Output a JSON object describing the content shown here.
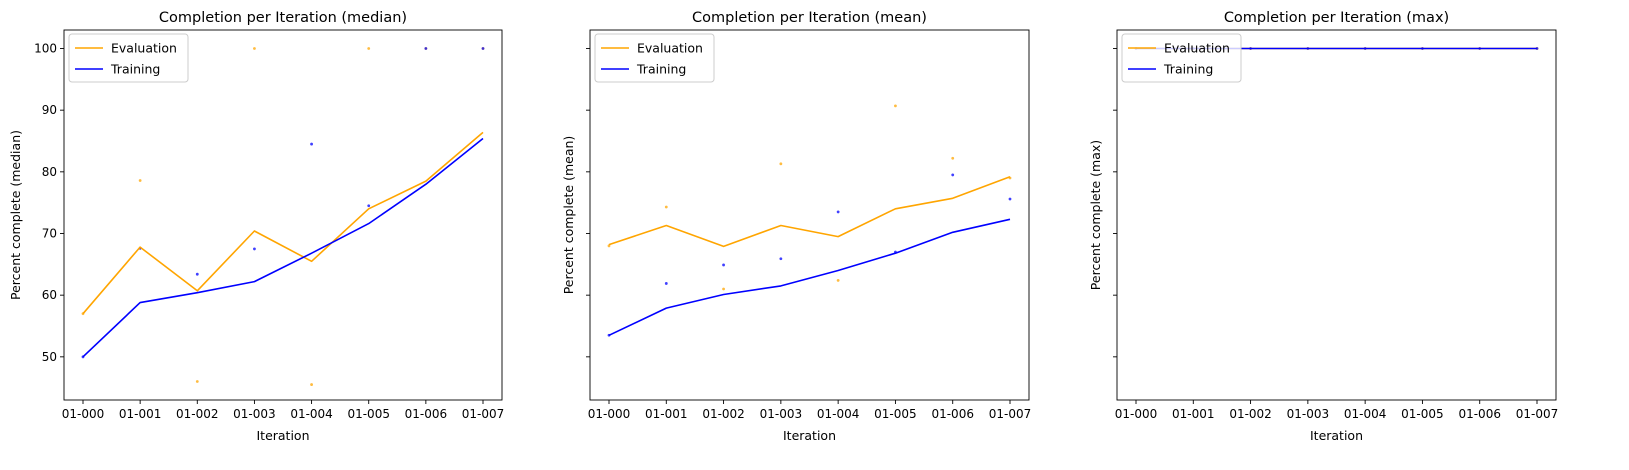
{
  "chart_data": [
    {
      "type": "line",
      "title": "Completion per Iteration (median)",
      "xlabel": "Iteration",
      "ylabel": "Percent complete (median)",
      "ylim": [
        43,
        103
      ],
      "yticks": [
        50,
        60,
        70,
        80,
        90,
        100
      ],
      "show_ytick_labels": true,
      "grid": false,
      "legend": "top-left",
      "categories": [
        "01-000",
        "01-001",
        "01-002",
        "01-003",
        "01-004",
        "01-005",
        "01-006",
        "01-007"
      ],
      "series": [
        {
          "name": "Evaluation",
          "color": "#ffa500",
          "values": [
            57.0,
            67.8,
            60.7,
            70.4,
            65.5,
            74.0,
            78.5,
            86.4
          ]
        },
        {
          "name": "Training",
          "color": "#0000ff",
          "values": [
            50.0,
            58.8,
            60.4,
            62.2,
            66.8,
            71.6,
            78.0,
            85.4
          ]
        }
      ],
      "scatter": [
        {
          "color": "#ffa500",
          "points": [
            [
              0,
              57.0
            ],
            [
              1,
              78.6
            ],
            [
              2,
              46.0
            ],
            [
              3,
              100.0
            ],
            [
              4,
              45.5
            ],
            [
              5,
              100.0
            ],
            [
              6,
              100.0
            ],
            [
              7,
              100.0
            ]
          ]
        },
        {
          "color": "#0000ff",
          "points": [
            [
              0,
              50.0
            ],
            [
              1,
              67.6
            ],
            [
              2,
              63.4
            ],
            [
              3,
              67.5
            ],
            [
              4,
              84.5
            ],
            [
              5,
              74.5
            ],
            [
              6,
              100.0
            ],
            [
              7,
              100.0
            ]
          ]
        }
      ]
    },
    {
      "type": "line",
      "title": "Completion per Iteration (mean)",
      "xlabel": "Iteration",
      "ylabel": "Percent complete (mean)",
      "ylim": [
        43,
        103
      ],
      "yticks": [
        50,
        60,
        70,
        80,
        90,
        100
      ],
      "show_ytick_labels": false,
      "grid": false,
      "legend": "top-left",
      "categories": [
        "01-000",
        "01-001",
        "01-002",
        "01-003",
        "01-004",
        "01-005",
        "01-006",
        "01-007"
      ],
      "series": [
        {
          "name": "Evaluation",
          "color": "#ffa500",
          "values": [
            68.2,
            71.3,
            67.9,
            71.3,
            69.5,
            74.0,
            75.7,
            79.2
          ]
        },
        {
          "name": "Training",
          "color": "#0000ff",
          "values": [
            53.5,
            57.9,
            60.1,
            61.5,
            64.0,
            66.8,
            70.2,
            72.3
          ]
        }
      ],
      "scatter": [
        {
          "color": "#ffa500",
          "points": [
            [
              0,
              68.0
            ],
            [
              1,
              74.3
            ],
            [
              2,
              61.0
            ],
            [
              3,
              81.3
            ],
            [
              4,
              62.4
            ],
            [
              5,
              90.7
            ],
            [
              6,
              82.2
            ],
            [
              7,
              79.0
            ]
          ]
        },
        {
          "color": "#0000ff",
          "points": [
            [
              0,
              53.5
            ],
            [
              1,
              61.9
            ],
            [
              2,
              64.9
            ],
            [
              3,
              65.9
            ],
            [
              4,
              73.5
            ],
            [
              5,
              67.0
            ],
            [
              6,
              79.5
            ],
            [
              7,
              75.6
            ]
          ]
        }
      ]
    },
    {
      "type": "line",
      "title": "Completion per Iteration (max)",
      "xlabel": "Iteration",
      "ylabel": "Percent complete (max)",
      "ylim": [
        43,
        103
      ],
      "yticks": [
        50,
        60,
        70,
        80,
        90,
        100
      ],
      "show_ytick_labels": false,
      "grid": false,
      "legend": "top-left",
      "categories": [
        "01-000",
        "01-001",
        "01-002",
        "01-003",
        "01-004",
        "01-005",
        "01-006",
        "01-007"
      ],
      "series": [
        {
          "name": "Evaluation",
          "color": "#ffa500",
          "values": [
            100,
            100,
            100,
            100,
            100,
            100,
            100,
            100
          ]
        },
        {
          "name": "Training",
          "color": "#0000ff",
          "values": [
            100,
            100,
            100,
            100,
            100,
            100,
            100,
            100
          ]
        }
      ],
      "scatter": [
        {
          "color": "#ffa500",
          "points": [
            [
              0,
              100
            ],
            [
              1,
              100
            ],
            [
              2,
              100
            ],
            [
              3,
              100
            ],
            [
              4,
              100
            ],
            [
              5,
              100
            ],
            [
              6,
              100
            ],
            [
              7,
              100
            ]
          ]
        },
        {
          "color": "#0000ff",
          "points": [
            [
              0,
              100
            ],
            [
              1,
              100
            ],
            [
              2,
              100
            ],
            [
              3,
              100
            ],
            [
              4,
              100
            ],
            [
              5,
              100
            ],
            [
              6,
              100
            ],
            [
              7,
              100
            ]
          ]
        }
      ]
    }
  ]
}
